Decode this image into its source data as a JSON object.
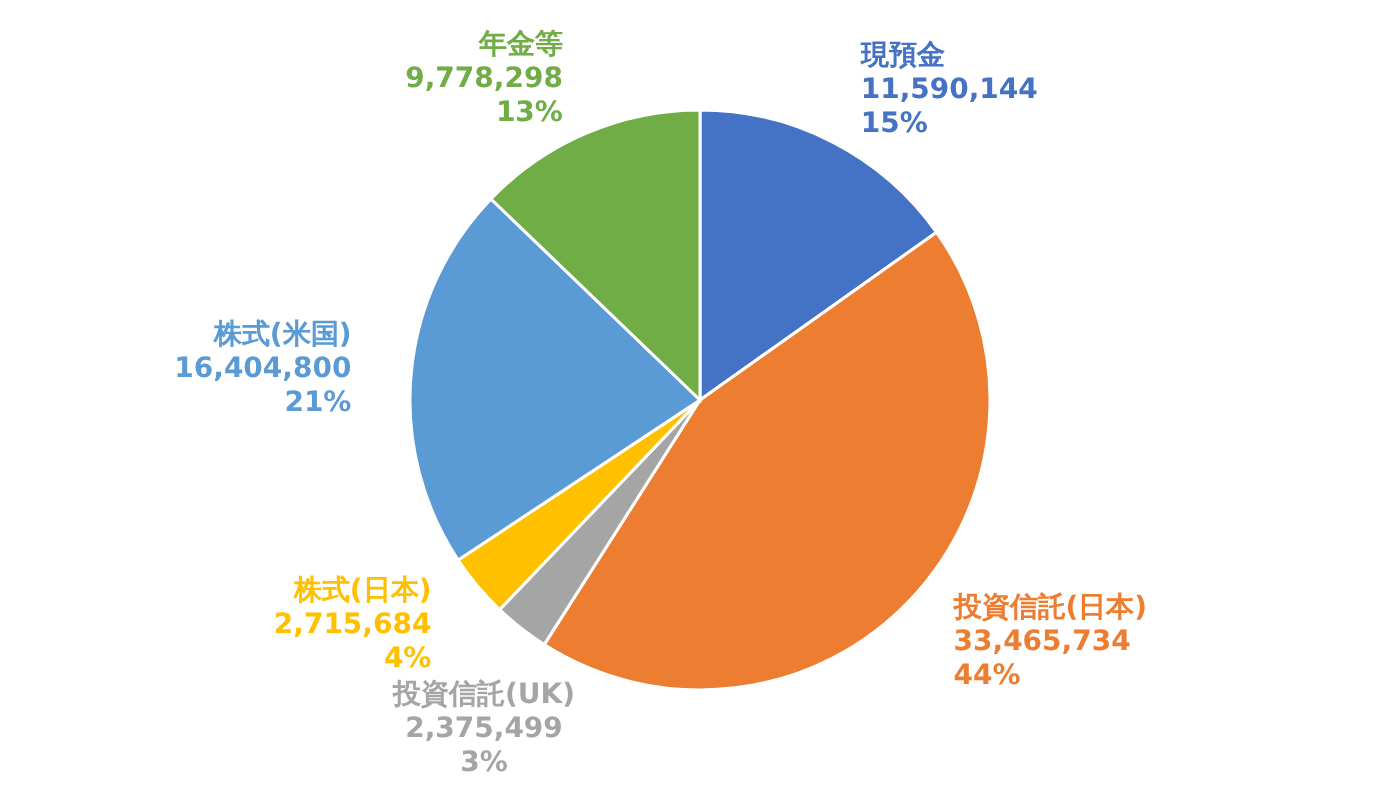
{
  "chart_data": {
    "type": "pie",
    "categories": [
      "現預金",
      "投資信託(日本)",
      "投資信託(UK)",
      "株式(日本)",
      "株式(米国)",
      "年金等"
    ],
    "values": [
      11590144,
      33465734,
      2375499,
      2715684,
      16404800,
      9778298
    ],
    "colors": [
      "#4472c4",
      "#ed7d31",
      "#a5a5a5",
      "#ffc000",
      "#5b9bd5",
      "#70ad47"
    ],
    "value_labels": [
      "11,590,144\n15%",
      "33,465,734\n44%",
      "2,375,499\n3%",
      "2,715,684\n4%",
      "16,404,800\n21%",
      "9,778,298\n13%"
    ],
    "legend": false
  }
}
